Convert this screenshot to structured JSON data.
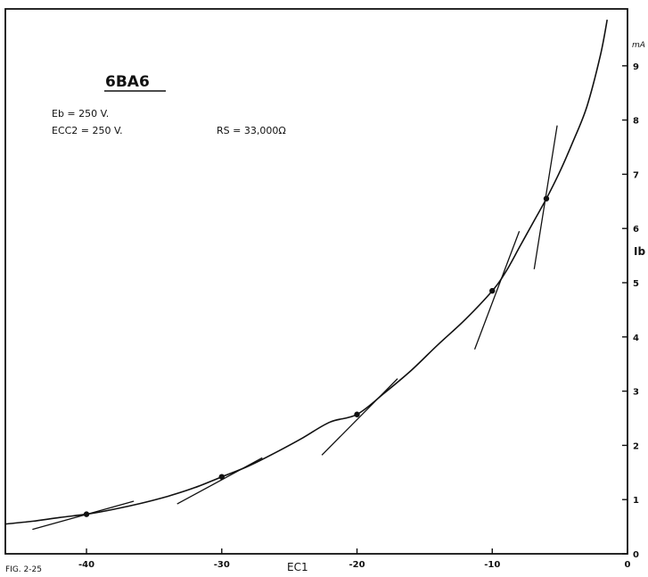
{
  "chart_data": {
    "type": "line",
    "title": "6BA6",
    "xlabel": "EC1",
    "ylabel": "Ib",
    "y_unit": "mA",
    "xlim": [
      -46,
      0
    ],
    "ylim": [
      0,
      10
    ],
    "x_ticks": [
      -40,
      -30,
      -20,
      -10,
      0
    ],
    "x_tick_labels": [
      "-40",
      "-30",
      "-20",
      "-10",
      "0"
    ],
    "y_ticks": [
      0,
      1,
      2,
      3,
      4,
      5,
      6,
      7,
      8,
      9
    ],
    "y_tick_labels": [
      "0",
      "1",
      "2",
      "3",
      "4",
      "5",
      "6",
      "7",
      "8",
      "9"
    ],
    "grid": false,
    "annotations": [
      "Eb = 250 V.",
      "ECC2 = 250 V.",
      "RS = 33,000Ω"
    ],
    "figure_label": "FIG. 2-25",
    "series": [
      {
        "x": [
          -46,
          -44,
          -42,
          -40,
          -38,
          -36,
          -34,
          -32,
          -30,
          -28,
          -26,
          -24,
          -22,
          -20,
          -18,
          -16,
          -14,
          -12,
          -10,
          -9,
          -8,
          -7,
          -6,
          -5,
          -4,
          -3,
          -2,
          -1.5
        ],
        "y": [
          0.55,
          0.6,
          0.67,
          0.73,
          0.82,
          0.93,
          1.06,
          1.22,
          1.42,
          1.62,
          1.87,
          2.14,
          2.43,
          2.57,
          2.96,
          3.38,
          3.86,
          4.32,
          4.85,
          5.2,
          5.65,
          6.1,
          6.55,
          7.05,
          7.62,
          8.25,
          9.2,
          9.85
        ]
      }
    ],
    "points": [
      {
        "x": -40,
        "y": 0.73
      },
      {
        "x": -30,
        "y": 1.42
      },
      {
        "x": -20,
        "y": 2.57
      },
      {
        "x": -10,
        "y": 4.85
      },
      {
        "x": -6,
        "y": 6.55
      }
    ],
    "tangents": [
      {
        "x1": -44,
        "y1": 0.45,
        "x2": -36.5,
        "y2": 0.97
      },
      {
        "x1": -33.3,
        "y1": 0.92,
        "x2": -27,
        "y2": 1.77
      },
      {
        "x1": -22.6,
        "y1": 1.82,
        "x2": -17,
        "y2": 3.23
      },
      {
        "x1": -11.3,
        "y1": 3.77,
        "x2": -8,
        "y2": 5.95
      },
      {
        "x1": -6.9,
        "y1": 5.25,
        "x2": -5.2,
        "y2": 7.9
      }
    ]
  }
}
